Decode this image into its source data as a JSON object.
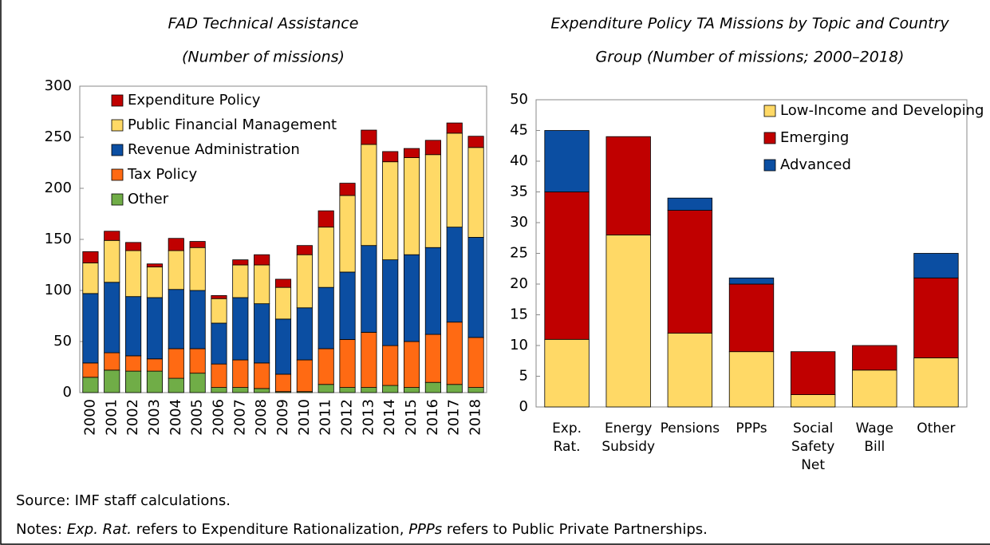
{
  "chart_data": [
    {
      "type": "stacked_bar",
      "title": [
        "FAD Technical Assistance",
        "(Number of missions)"
      ],
      "categories": [
        "2000",
        "2001",
        "2002",
        "2003",
        "2004",
        "2005",
        "2006",
        "2007",
        "2008",
        "2009",
        "2010",
        "2011",
        "2012",
        "2013",
        "2014",
        "2015",
        "2016",
        "2017",
        "2018"
      ],
      "series": [
        {
          "name": "Other",
          "color": "#70ad47",
          "values": [
            15,
            22,
            21,
            21,
            14,
            19,
            5,
            5,
            4,
            1,
            1,
            8,
            5,
            5,
            7,
            5,
            10,
            8,
            5
          ]
        },
        {
          "name": "Tax Policy",
          "color": "#ff6a13",
          "values": [
            14,
            17,
            15,
            12,
            29,
            24,
            23,
            27,
            25,
            17,
            31,
            35,
            47,
            54,
            39,
            45,
            47,
            61,
            49
          ]
        },
        {
          "name": "Revenue Administration",
          "color": "#0b4ea2",
          "values": [
            68,
            69,
            58,
            60,
            58,
            57,
            40,
            61,
            58,
            54,
            51,
            60,
            66,
            85,
            84,
            85,
            85,
            93,
            98
          ]
        },
        {
          "name": "Public Financial Management",
          "color": "#ffd966",
          "values": [
            30,
            41,
            45,
            30,
            38,
            42,
            24,
            32,
            38,
            31,
            52,
            59,
            75,
            99,
            96,
            95,
            91,
            92,
            88
          ]
        },
        {
          "name": "Expenditure Policy",
          "color": "#c00000",
          "values": [
            11,
            9,
            8,
            3,
            12,
            6,
            3,
            5,
            10,
            8,
            9,
            16,
            12,
            14,
            10,
            9,
            14,
            10,
            11
          ]
        }
      ],
      "ylim": [
        0,
        300
      ],
      "yticks": [
        0,
        50,
        100,
        150,
        200,
        250,
        300
      ],
      "legend": "upper-left"
    },
    {
      "type": "stacked_bar",
      "title": [
        "Expenditure Policy TA Missions by Topic and Country",
        "Group (Number of missions; 2000–2018)"
      ],
      "categories": [
        "Exp. Rat.",
        "Energy Subsidy",
        "Pensions",
        "PPPs",
        "Social Safety Net",
        "Wage Bill",
        "Other"
      ],
      "series": [
        {
          "name": "Low-Income and Developing",
          "color": "#ffd966",
          "values": [
            11,
            28,
            12,
            9,
            2,
            6,
            8
          ]
        },
        {
          "name": "Emerging",
          "color": "#c00000",
          "values": [
            24,
            16,
            20,
            11,
            7,
            4,
            13
          ]
        },
        {
          "name": "Advanced",
          "color": "#0b4ea2",
          "values": [
            10,
            0,
            2,
            1,
            0,
            0,
            4
          ]
        }
      ],
      "ylim": [
        0,
        50
      ],
      "yticks": [
        0,
        5,
        10,
        15,
        20,
        25,
        30,
        35,
        40,
        45,
        50
      ],
      "legend": "upper-right"
    }
  ],
  "source": "Source: IMF staff calculations.",
  "notes": [
    "Notes: ",
    "Exp. Rat.",
    " refers to Expenditure Rationalization, ",
    "PPPs",
    " refers to Public Private Partnerships."
  ]
}
